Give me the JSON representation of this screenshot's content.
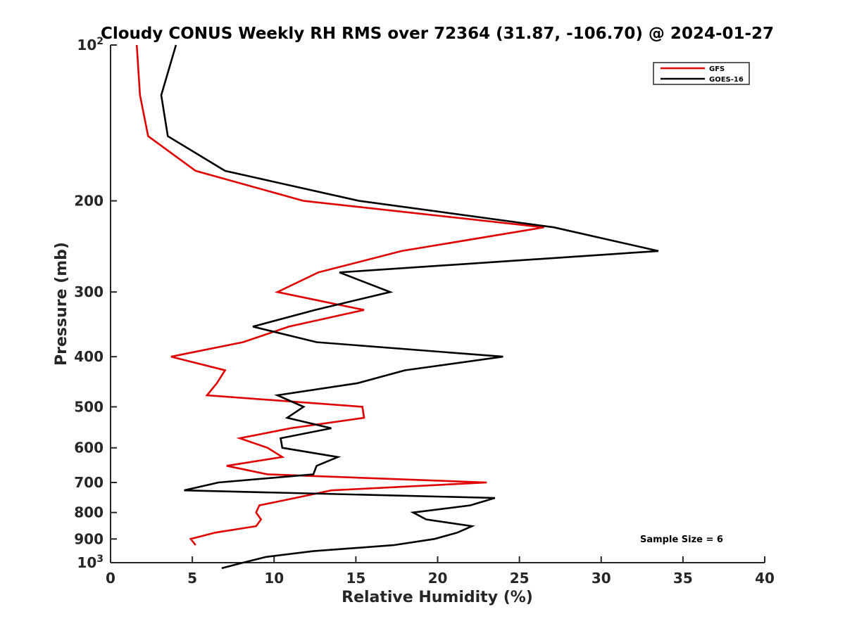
{
  "chart_data": {
    "type": "line",
    "title": "Cloudy CONUS Weekly RH RMS over 72364 (31.87, -106.70) @ 2024-01-27",
    "xlabel": "Relative Humidity (%)",
    "ylabel": "Pressure (mb)",
    "xlim": [
      0,
      40
    ],
    "ylim": [
      100,
      1000
    ],
    "y_scale": "log",
    "y_reversed": true,
    "x_ticks": [
      0,
      5,
      10,
      15,
      20,
      25,
      30,
      35,
      40
    ],
    "x_tick_labels": [
      "0",
      "5",
      "10",
      "15",
      "20",
      "25",
      "30",
      "35",
      "40"
    ],
    "y_ticks": [
      200,
      300,
      400,
      500,
      600,
      700,
      800,
      900
    ],
    "y_tick_labels": [
      "200",
      "300",
      "400",
      "500",
      "600",
      "700",
      "800",
      "900"
    ],
    "y_end_ticks": [
      {
        "value": 100,
        "base": "10",
        "exp": "2"
      },
      {
        "value": 1000,
        "base": "10",
        "exp": "3"
      }
    ],
    "grid": false,
    "legend_position": "top-right",
    "series": [
      {
        "name": "GFS",
        "color": "#e00000",
        "points": [
          [
            1.6,
            100
          ],
          [
            1.8,
            125
          ],
          [
            2.3,
            150
          ],
          [
            5.2,
            175
          ],
          [
            11.8,
            200
          ],
          [
            26.5,
            225
          ],
          [
            17.8,
            250
          ],
          [
            12.7,
            275
          ],
          [
            10.2,
            300
          ],
          [
            15.5,
            325
          ],
          [
            10.9,
            350
          ],
          [
            8.1,
            375
          ],
          [
            3.7,
            400
          ],
          [
            7.0,
            425
          ],
          [
            6.5,
            450
          ],
          [
            5.9,
            475
          ],
          [
            15.4,
            500
          ],
          [
            15.5,
            525
          ],
          [
            11.0,
            550
          ],
          [
            7.9,
            575
          ],
          [
            9.6,
            600
          ],
          [
            10.5,
            625
          ],
          [
            7.1,
            650
          ],
          [
            9.6,
            675
          ],
          [
            23.0,
            700
          ],
          [
            13.5,
            725
          ],
          [
            11.3,
            750
          ],
          [
            9.1,
            775
          ],
          [
            8.9,
            800
          ],
          [
            9.2,
            825
          ],
          [
            8.9,
            850
          ],
          [
            6.4,
            875
          ],
          [
            4.9,
            900
          ],
          [
            5.2,
            925
          ]
        ]
      },
      {
        "name": "GOES-16",
        "color": "#000000",
        "points": [
          [
            4.0,
            100
          ],
          [
            3.1,
            125
          ],
          [
            3.5,
            150
          ],
          [
            7.0,
            175
          ],
          [
            15.2,
            200
          ],
          [
            27.1,
            225
          ],
          [
            33.5,
            250
          ],
          [
            14.0,
            275
          ],
          [
            17.1,
            300
          ],
          [
            12.5,
            325
          ],
          [
            8.7,
            350
          ],
          [
            12.6,
            375
          ],
          [
            24.0,
            400
          ],
          [
            18.0,
            425
          ],
          [
            15.1,
            450
          ],
          [
            10.2,
            475
          ],
          [
            11.8,
            500
          ],
          [
            10.8,
            525
          ],
          [
            13.5,
            550
          ],
          [
            10.4,
            575
          ],
          [
            10.5,
            600
          ],
          [
            13.9,
            625
          ],
          [
            12.6,
            650
          ],
          [
            12.4,
            675
          ],
          [
            6.6,
            700
          ],
          [
            4.5,
            725
          ],
          [
            23.5,
            750
          ],
          [
            22.0,
            775
          ],
          [
            18.5,
            800
          ],
          [
            19.3,
            825
          ],
          [
            22.1,
            850
          ],
          [
            21.2,
            875
          ],
          [
            19.8,
            900
          ],
          [
            17.3,
            925
          ],
          [
            12.4,
            950
          ],
          [
            9.5,
            975
          ],
          [
            8.1,
            1000
          ],
          [
            6.8,
            1025
          ]
        ]
      }
    ],
    "legend": [
      {
        "name": "GFS",
        "color": "#e00000"
      },
      {
        "name": "GOES-16",
        "color": "#000000"
      }
    ],
    "annotation": "Sample Size = 6"
  }
}
